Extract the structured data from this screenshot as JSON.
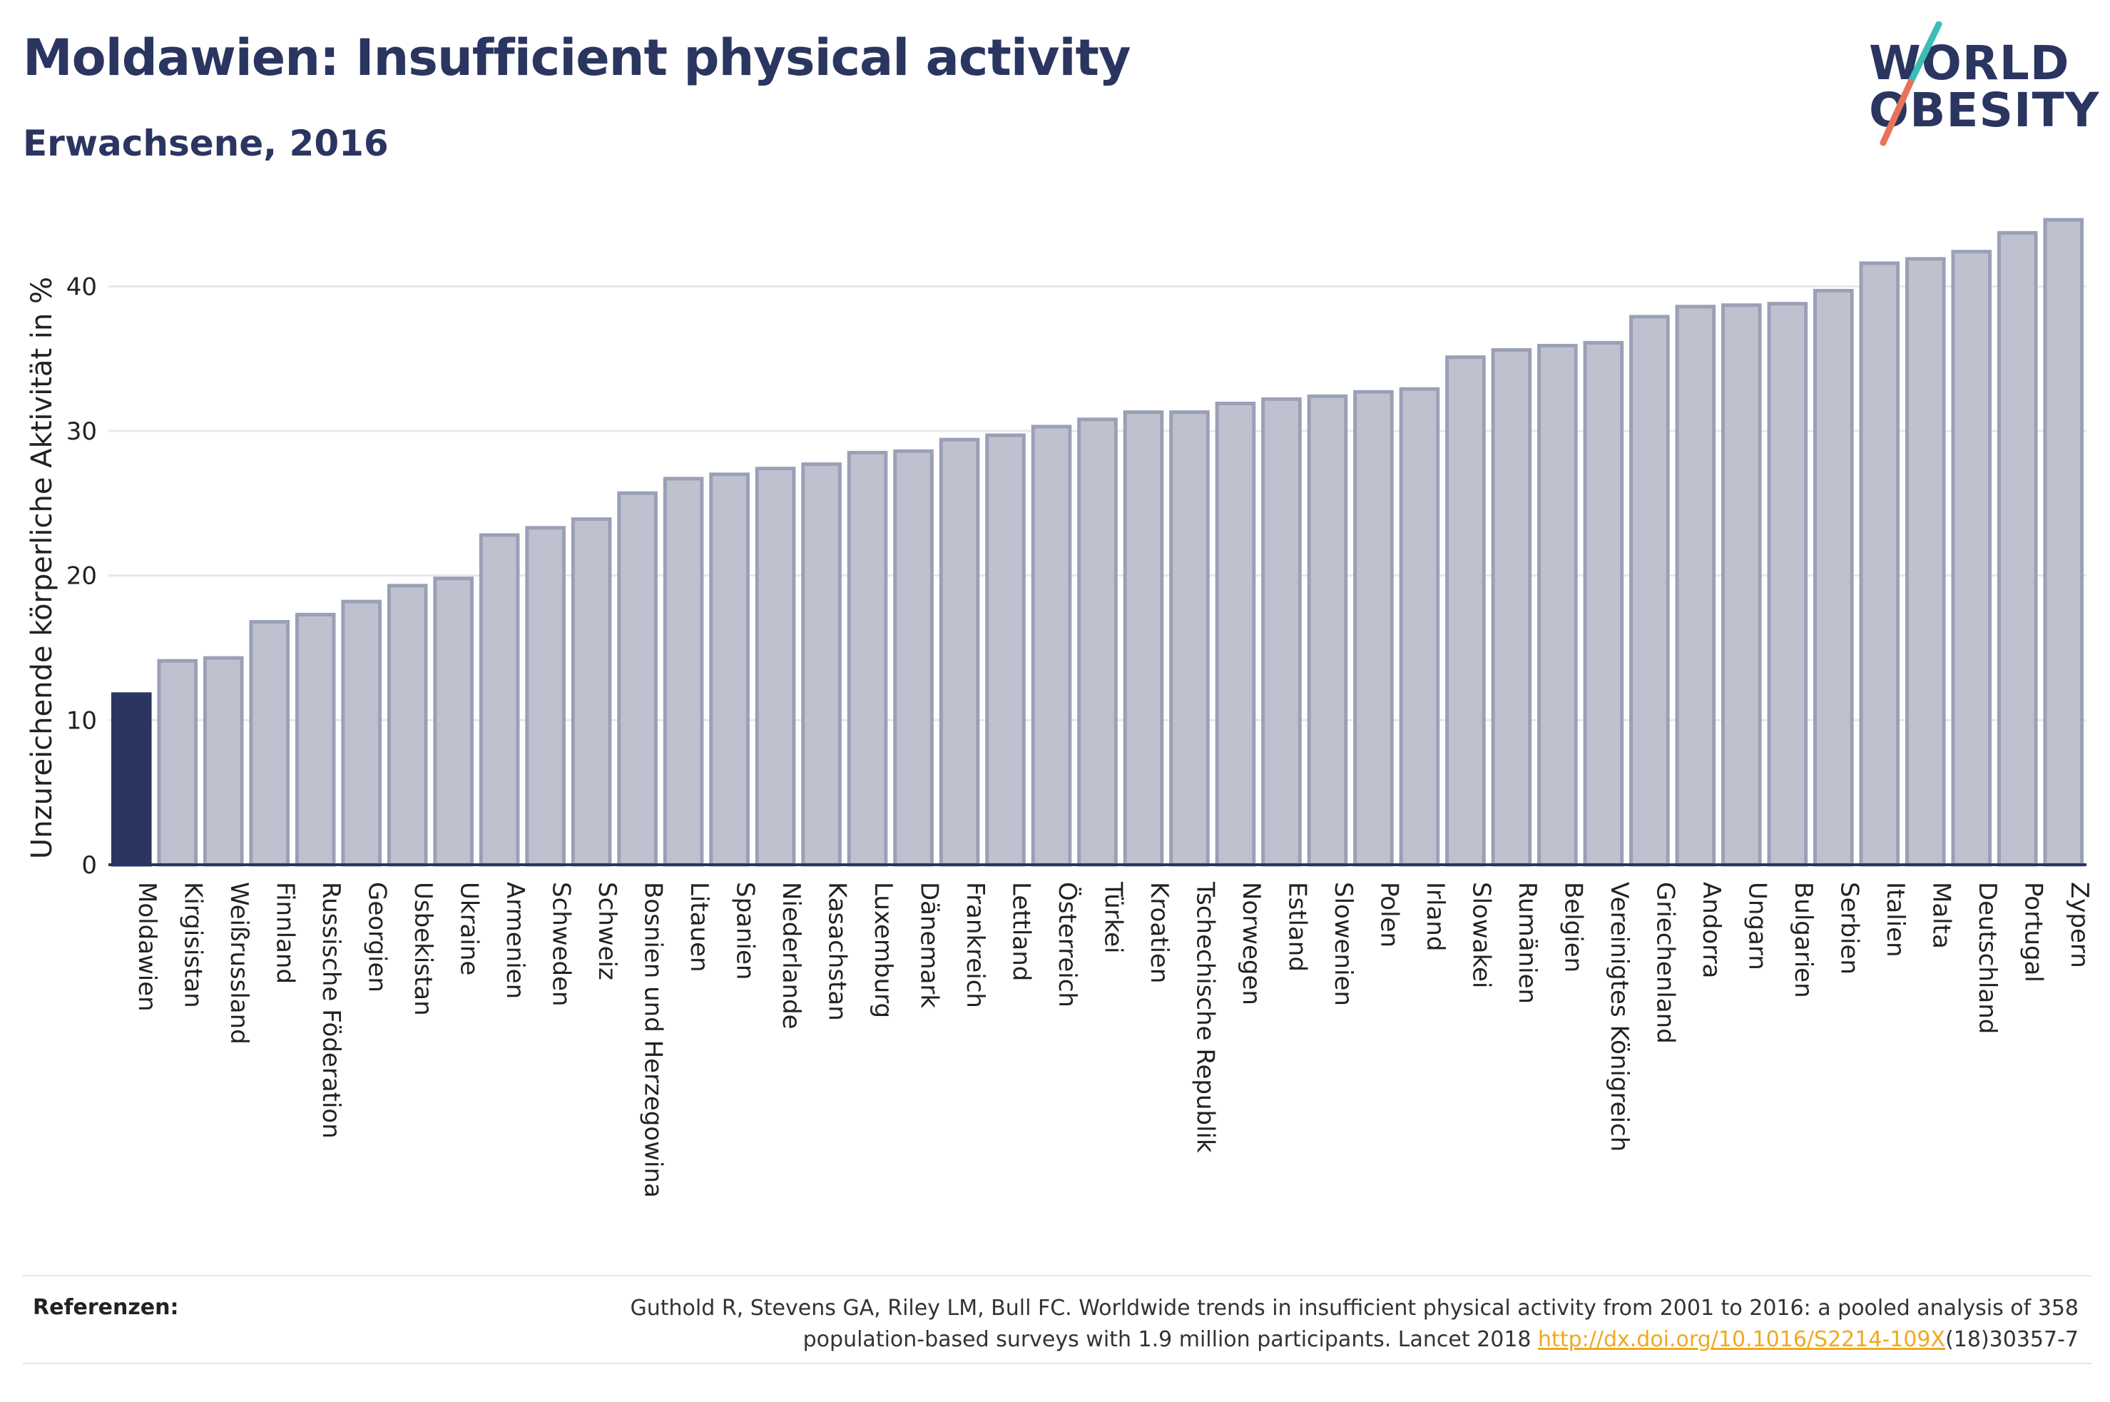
{
  "header": {
    "title": "Moldawien: Insufficient physical activity",
    "subtitle": "Erwachsene, 2016"
  },
  "logo": {
    "line1": "WORLD",
    "line2": "OBESITY",
    "colors": {
      "text": "#2a3560",
      "slash_top": "#3cbdb5",
      "slash_bottom": "#e8735a"
    }
  },
  "chart_data": {
    "type": "bar",
    "ylabel": "Unzureichende körperliche Aktivität in %",
    "xlabel": "",
    "ylim": [
      0,
      45
    ],
    "yticks": [
      0,
      10,
      20,
      30,
      40
    ],
    "grid": true,
    "highlight": "Moldawien",
    "colors": {
      "highlight": "#2a3560",
      "bar_fill": "#bfc2ce",
      "bar_stroke": "#9aa0b6",
      "grid": "#e8e8e8",
      "axis": "#2a3560"
    },
    "categories": [
      "Moldawien",
      "Kirgisistan",
      "Weißrussland",
      "Finnland",
      "Russische Föderation",
      "Georgien",
      "Usbekistan",
      "Ukraine",
      "Armenien",
      "Schweden",
      "Schweiz",
      "Bosnien und Herzegowina",
      "Litauen",
      "Spanien",
      "Niederlande",
      "Kasachstan",
      "Luxemburg",
      "Dänemark",
      "Frankreich",
      "Lettland",
      "Österreich",
      "Türkei",
      "Kroatien",
      "Tschechische Republik",
      "Norwegen",
      "Estland",
      "Slowenien",
      "Polen",
      "Irland",
      "Slowakei",
      "Rumänien",
      "Belgien",
      "Vereinigtes Königreich",
      "Griechenland",
      "Andorra",
      "Ungarn",
      "Bulgarien",
      "Serbien",
      "Italien",
      "Malta",
      "Deutschland",
      "Portugal",
      "Zypern"
    ],
    "values": [
      11.8,
      14.1,
      14.3,
      16.8,
      17.3,
      18.2,
      19.3,
      19.8,
      22.8,
      23.3,
      23.9,
      25.7,
      26.7,
      27.0,
      27.4,
      27.7,
      28.5,
      28.6,
      29.4,
      29.7,
      30.3,
      30.8,
      31.3,
      31.3,
      31.9,
      32.2,
      32.4,
      32.7,
      32.9,
      35.1,
      35.6,
      35.9,
      36.1,
      37.9,
      38.6,
      38.7,
      38.8,
      39.7,
      41.6,
      41.9,
      42.4,
      43.7,
      44.6
    ]
  },
  "references": {
    "label": "Referenzen:",
    "line1": "Guthold R, Stevens GA, Riley LM, Bull FC. Worldwide trends in insufficient physical activity from 2001 to 2016: a pooled analysis of 358",
    "line2_prefix": "population-based surveys with 1.9 million participants. Lancet 2018 ",
    "link": "http://dx.doi.org/10.1016/S2214-109X",
    "line2_suffix": "(18)30357-7"
  }
}
